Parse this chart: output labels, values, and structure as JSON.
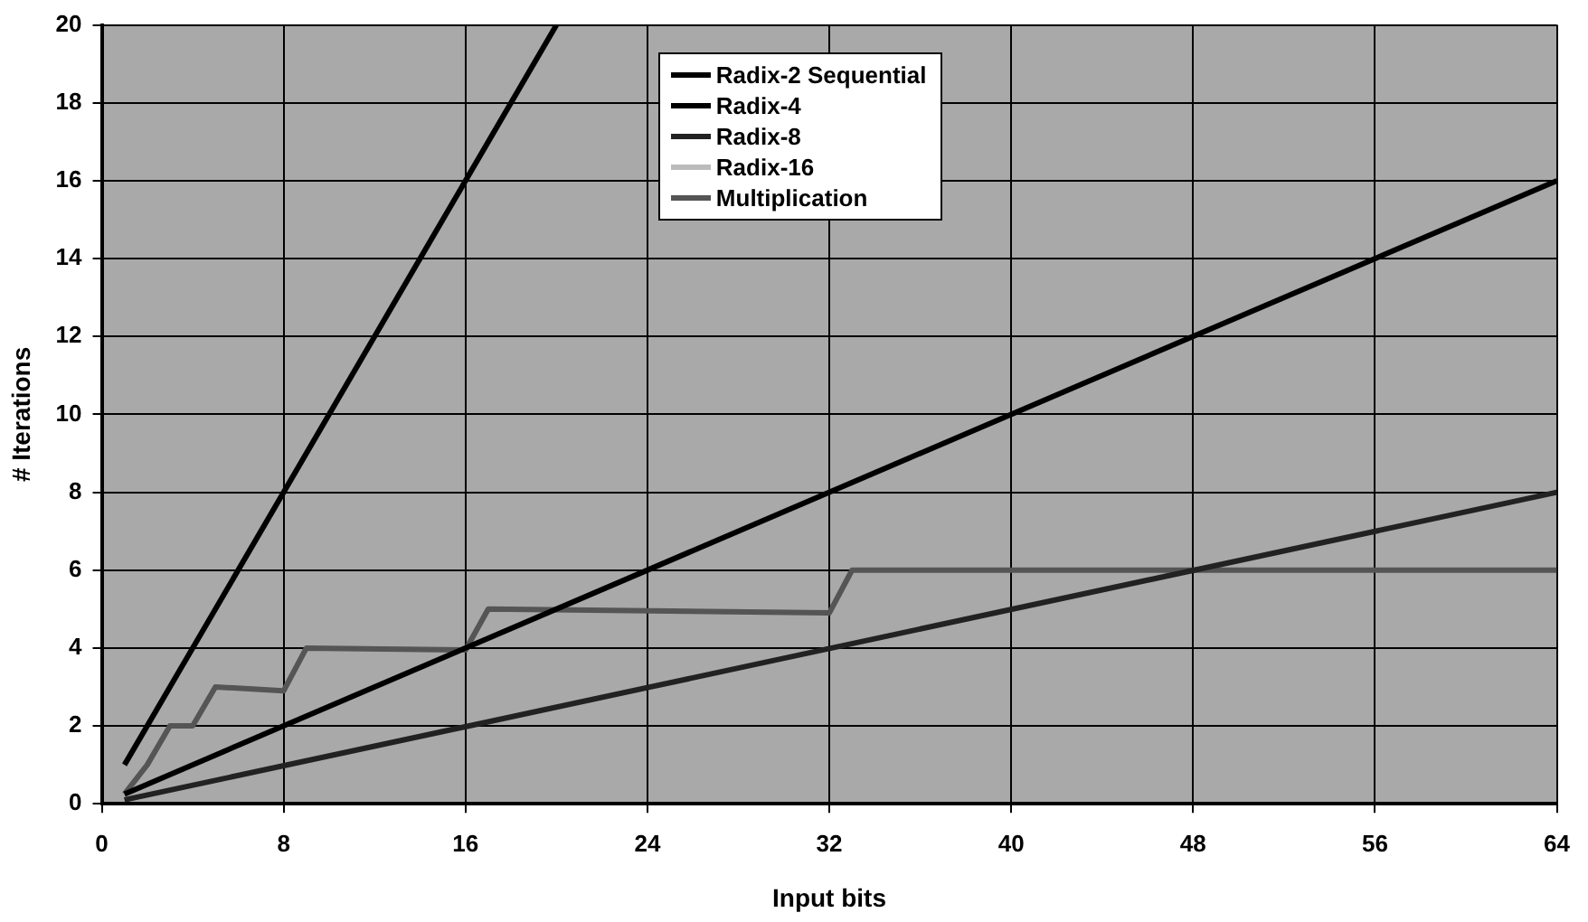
{
  "chart_data": {
    "type": "line",
    "xlabel": "Input bits",
    "ylabel": "# Iterations",
    "xlim": [
      0,
      64
    ],
    "xticks": [
      0,
      8,
      16,
      24,
      32,
      40,
      48,
      56,
      64
    ],
    "ylim": [
      0,
      20
    ],
    "yticks": [
      0,
      2,
      4,
      6,
      8,
      10,
      12,
      14,
      16,
      18,
      20
    ],
    "grid": true,
    "legend": "top",
    "marker": "none",
    "line_style": "solid",
    "series": [
      {
        "name": "Radix-2 Sequential",
        "color": "#000000",
        "x": [
          1,
          20
        ],
        "values": [
          1,
          20
        ]
      },
      {
        "name": "Radix-4",
        "color": "#000000",
        "x": [
          1,
          64
        ],
        "values": [
          0.25,
          16
        ]
      },
      {
        "name": "Radix-8",
        "color": "#222222",
        "x": [
          1,
          64
        ],
        "values": [
          0.1,
          8
        ]
      },
      {
        "name": "Radix-16",
        "color": "#bbbbbb"
      },
      {
        "name": "Multiplication",
        "color": "#555555",
        "x": [
          1,
          2,
          3,
          4,
          5,
          8,
          9,
          16,
          17,
          32,
          33,
          64
        ],
        "values": [
          0.25,
          1,
          2,
          2,
          3,
          2.9,
          4,
          3.95,
          5,
          4.9,
          6,
          6
        ]
      }
    ]
  }
}
